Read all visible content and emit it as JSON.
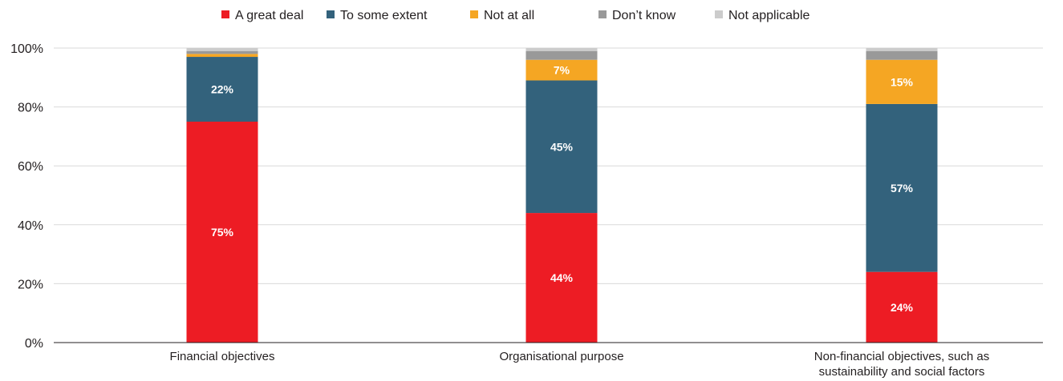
{
  "chart_data": {
    "type": "bar",
    "stacked": true,
    "categories": [
      [
        "Financial objectives"
      ],
      [
        "Organisational purpose"
      ],
      [
        "Non-financial objectives, such as",
        "sustainability and social factors"
      ]
    ],
    "series": [
      {
        "name": "A great deal",
        "color": "#ed1c24",
        "values": [
          75,
          44,
          24
        ],
        "labels": [
          "75%",
          "44%",
          "24%"
        ]
      },
      {
        "name": "To some extent",
        "color": "#33627c",
        "values": [
          22,
          45,
          57
        ],
        "labels": [
          "22%",
          "45%",
          "57%"
        ]
      },
      {
        "name": "Not at all",
        "color": "#f5a623",
        "values": [
          1,
          7,
          15
        ],
        "labels": [
          "",
          "7%",
          "15%"
        ]
      },
      {
        "name": "Don’t know",
        "color": "#999999",
        "values": [
          1,
          3,
          3
        ],
        "labels": [
          "",
          "",
          ""
        ]
      },
      {
        "name": "Not applicable",
        "color": "#cccccc",
        "values": [
          1,
          1,
          1
        ],
        "labels": [
          "",
          "",
          ""
        ]
      }
    ],
    "ylim": [
      0,
      100
    ],
    "yticks": [
      0,
      20,
      40,
      60,
      80,
      100
    ],
    "ytick_labels": [
      "0%",
      "20%",
      "40%",
      "60%",
      "80%",
      "100%"
    ],
    "grid": true,
    "legend_position": "top"
  }
}
